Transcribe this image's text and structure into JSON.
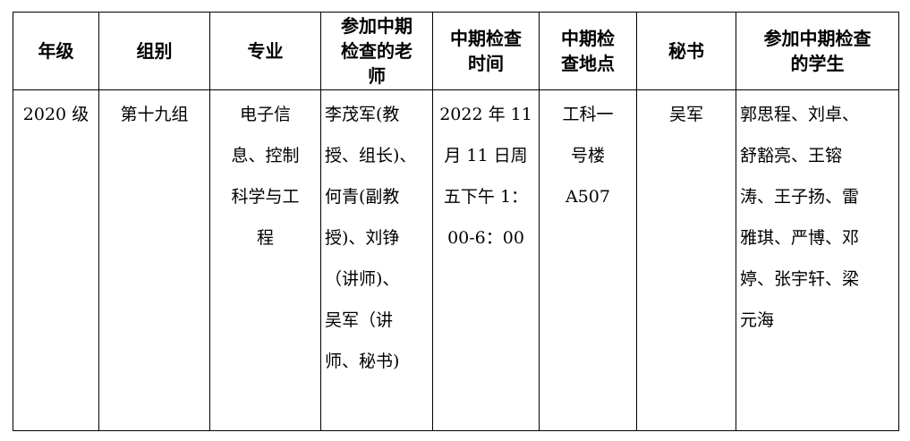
{
  "headers": [
    [
      "年级"
    ],
    [
      "组别"
    ],
    [
      "专业"
    ],
    [
      "参加中期",
      "检查的老",
      "师"
    ],
    [
      "中期检查",
      "时间"
    ],
    [
      "中期检",
      "查地点"
    ],
    [
      "秘书"
    ],
    [
      "参加中期检查",
      "的学生"
    ]
  ],
  "row": [
    [
      "2020 级"
    ],
    [
      "第十九组"
    ],
    [
      "电子信",
      "息、控制",
      "科学与工",
      "程"
    ],
    [
      "李茂军(教",
      "授、组长)、",
      "何青(副教",
      "授)、刘铮",
      "（讲师)、",
      "吴军（讲",
      "师、秘书)"
    ],
    [
      "2022 年 11",
      "月 11 日周",
      "五下午 1：",
      "00-6：00"
    ],
    [
      "工科一",
      "号楼",
      "A507"
    ],
    [
      "吴军"
    ],
    [
      "郭思程、刘卓、",
      "舒豁亮、王镕",
      "涛、王子扬、雷",
      "雅琪、严博、邓",
      "婷、张宇轩、梁",
      "元海"
    ]
  ]
}
